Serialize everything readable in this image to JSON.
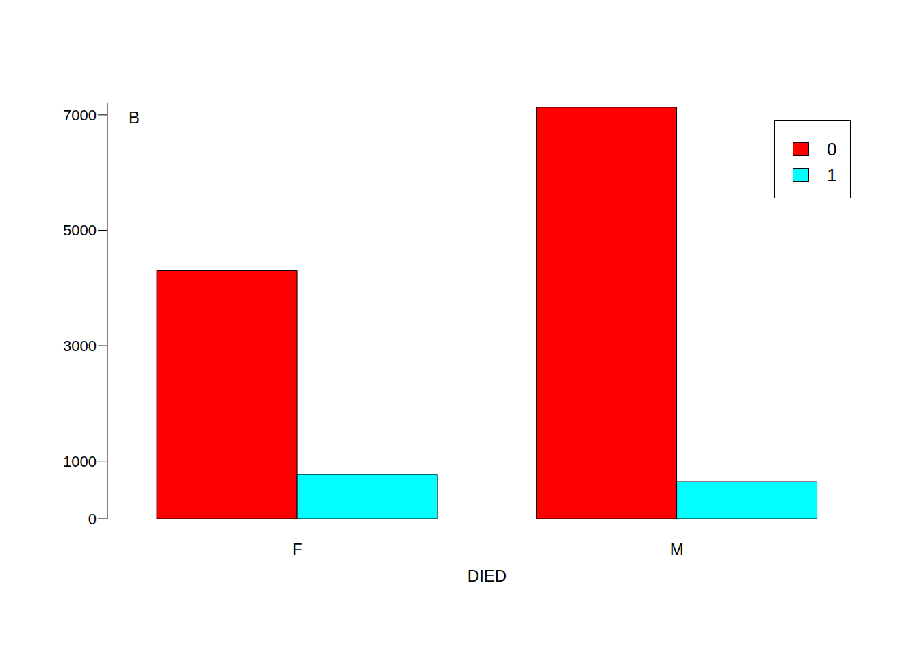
{
  "chart_data": {
    "type": "bar",
    "x_label": "DIED",
    "annotations": [
      "B"
    ],
    "categories": [
      "F",
      "M"
    ],
    "series": [
      {
        "name": "0",
        "color": "#ff0000",
        "values": [
          4300,
          7130
        ]
      },
      {
        "name": "1",
        "color": "#00ffff",
        "values": [
          770,
          640
        ]
      }
    ],
    "ylim": [
      0,
      7200
    ],
    "yticks": [
      0,
      1000,
      3000,
      5000,
      7000
    ],
    "legend": "top right",
    "grid": false
  }
}
